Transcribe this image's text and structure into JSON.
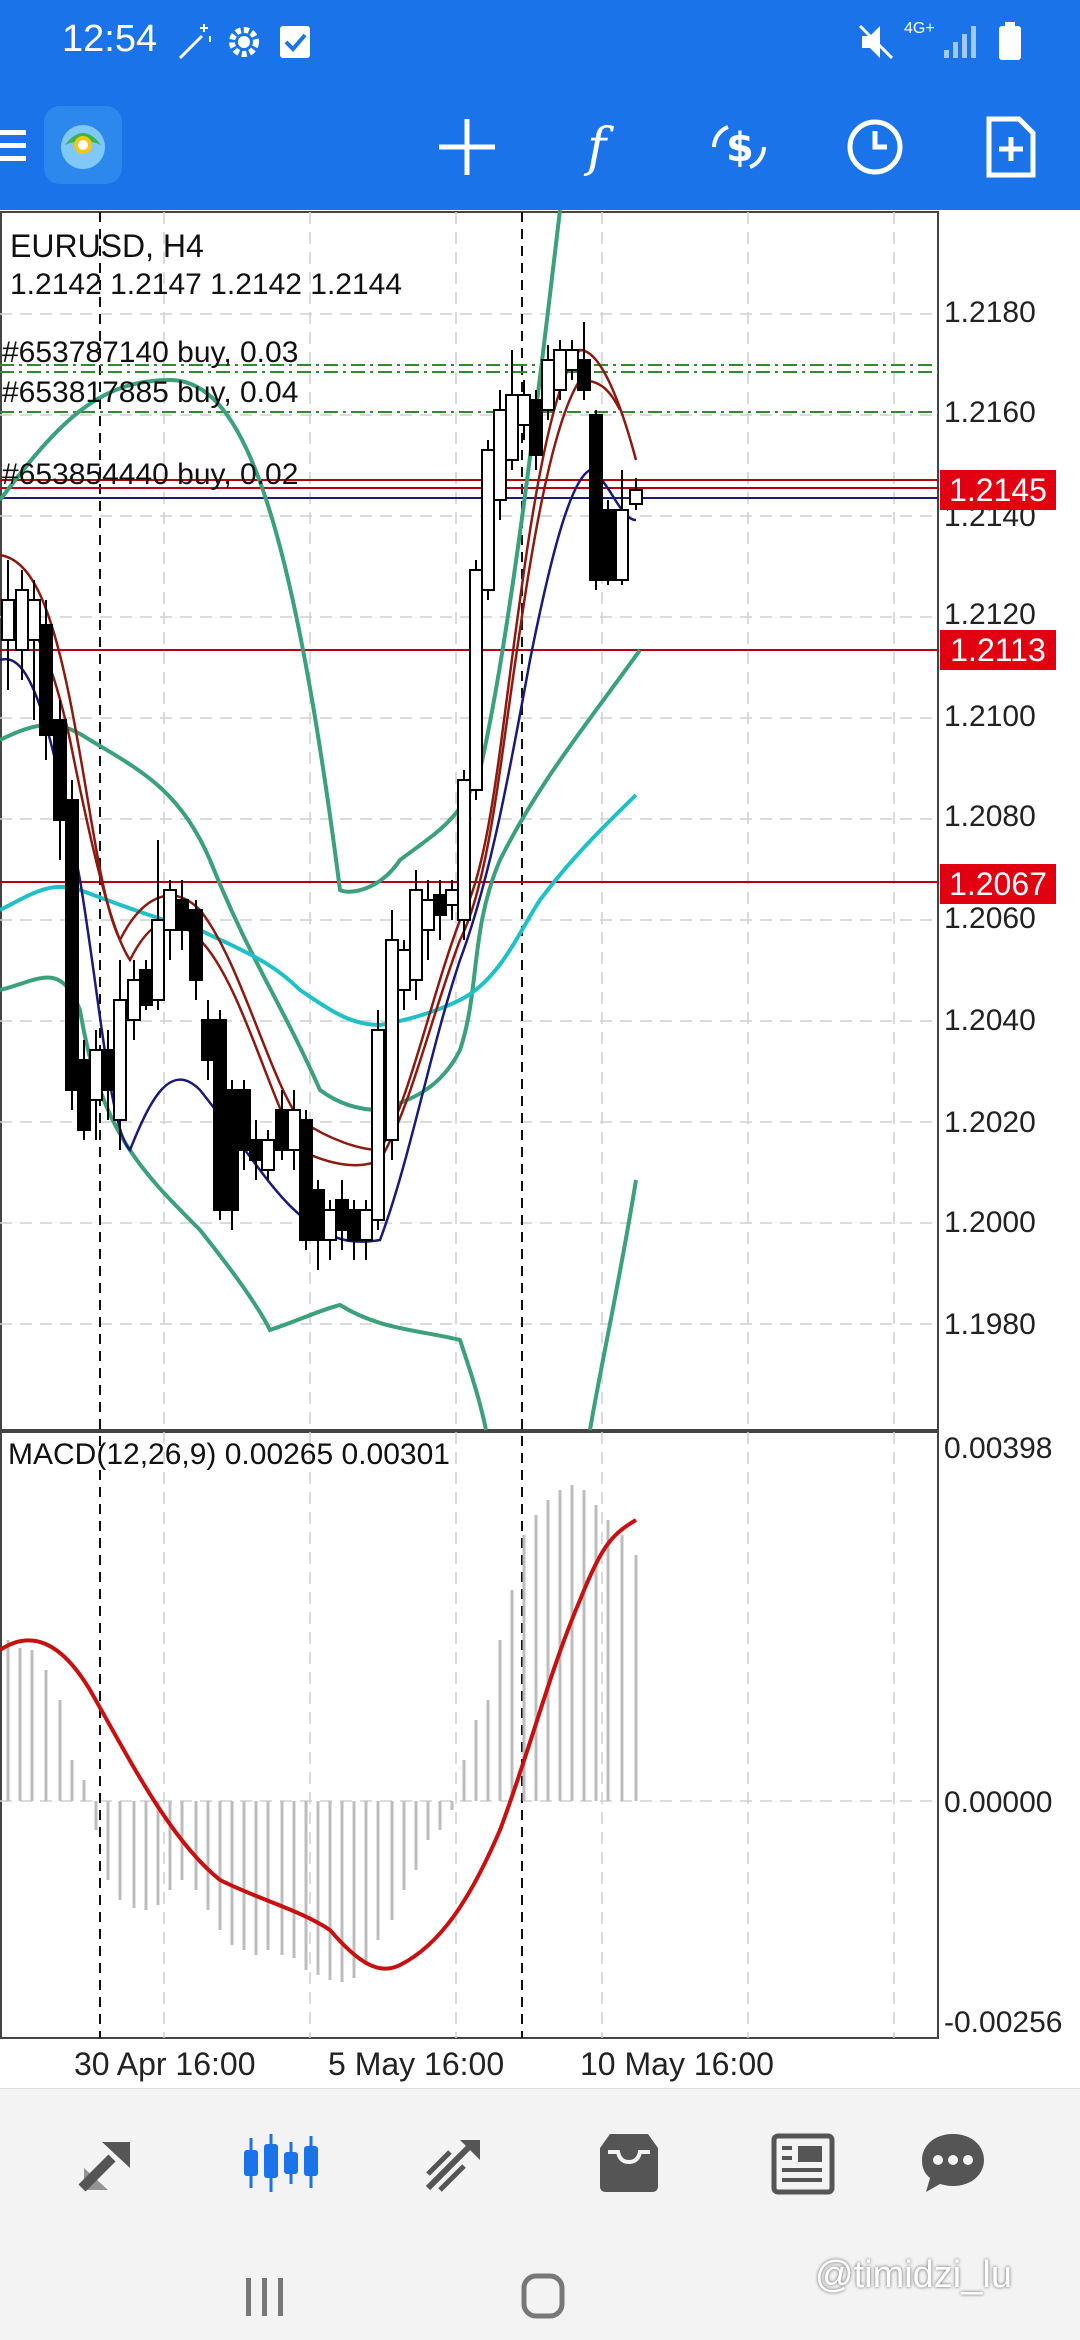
{
  "status_bar": {
    "time": "12:54",
    "icons": [
      "magic-wand-icon",
      "gear-icon",
      "checkbox-icon",
      "mute-icon",
      "signal-4g-icon",
      "battery-icon"
    ],
    "network": "4G+"
  },
  "toolbar": {
    "buttons": [
      "menu-icon",
      "metatrader-logo",
      "crosshair-icon",
      "indicators-icon",
      "trade-icon",
      "timeframe-icon",
      "new-order-icon"
    ],
    "accent": "#1a73e8"
  },
  "chart": {
    "symbol": "EURUSD, H4",
    "ohlc": "1.2142 1.2147 1.2142 1.2144",
    "price_ticks": [
      "1.2180",
      "1.2160",
      "1.2140",
      "1.2120",
      "1.2100",
      "1.2080",
      "1.2060",
      "1.2040",
      "1.2020",
      "1.2000",
      "1.1980"
    ],
    "orders": [
      {
        "label": "#653787140 buy, 0.03"
      },
      {
        "label": "#653817885 buy, 0.04"
      },
      {
        "label": "#653854440 buy, 0.02"
      }
    ],
    "price_tags": [
      "1.2145",
      "1.2113",
      "1.2067"
    ],
    "time_labels": [
      "30 Apr 16:00",
      "5 May 16:00",
      "10 May 16:00"
    ],
    "macd": {
      "title": "MACD(12,26,9) 0.00265 0.00301",
      "scale": [
        "0.00398",
        "0.00000",
        "-0.00256"
      ]
    },
    "colors": {
      "bull_candle": "#ffffff",
      "bear_candle": "#000000",
      "bollinger": "#3aa17a",
      "ma_cyan": "#20c0c8",
      "ma_brown": "#8b1a10",
      "ma_navy": "#1a1a7a",
      "order_line": "#2e8b2e",
      "tag_red": "#e00012",
      "macd_signal": "#c81010"
    }
  },
  "bottom_nav": {
    "items": [
      "quotes-icon",
      "chart-icon",
      "trade-icon",
      "history-icon",
      "news-icon",
      "chat-icon"
    ],
    "active": "chart-icon",
    "active_color": "#1a73e8"
  },
  "watermark": "@timidzi_lu"
}
